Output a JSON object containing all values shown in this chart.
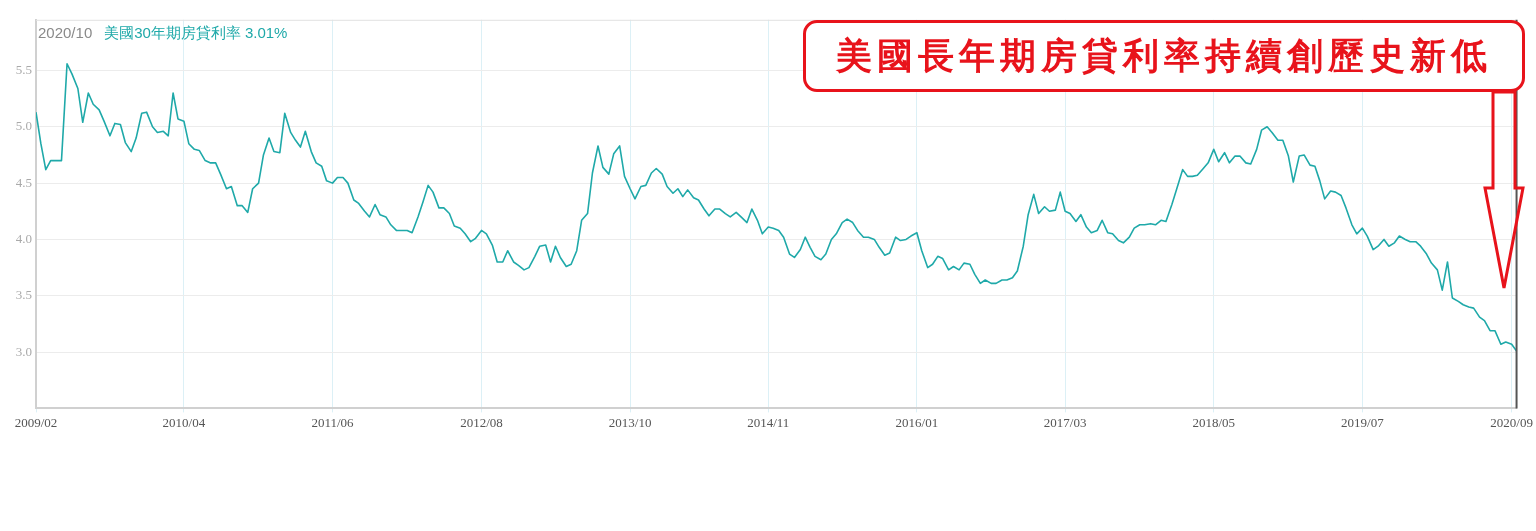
{
  "chart_data": {
    "type": "line",
    "title": "2020/10",
    "annotations": [
      "3.01%",
      "美國長年期房貸利率持續創歷史新低"
    ],
    "x": [
      "2009-02-01",
      "2009-02-15",
      "2009-03-01",
      "2009-03-15",
      "2009-04-01",
      "2009-04-15",
      "2009-05-01",
      "2009-05-15",
      "2009-06-01",
      "2009-06-15",
      "2009-07-01",
      "2009-07-15",
      "2009-08-01",
      "2009-08-15",
      "2009-09-01",
      "2009-09-15",
      "2009-10-01",
      "2009-10-15",
      "2009-11-01",
      "2009-11-15",
      "2009-12-01",
      "2009-12-15",
      "2010-01-01",
      "2010-01-15",
      "2010-02-01",
      "2010-02-15",
      "2010-03-01",
      "2010-03-15",
      "2010-04-01",
      "2010-04-15",
      "2010-05-01",
      "2010-05-15",
      "2010-06-01",
      "2010-06-15",
      "2010-07-01",
      "2010-07-15",
      "2010-08-01",
      "2010-08-15",
      "2010-09-01",
      "2010-09-15",
      "2010-10-01",
      "2010-10-15",
      "2010-11-01",
      "2010-11-15",
      "2010-12-01",
      "2010-12-15",
      "2011-01-01",
      "2011-01-15",
      "2011-02-01",
      "2011-02-15",
      "2011-03-01",
      "2011-03-15",
      "2011-04-01",
      "2011-04-15",
      "2011-05-01",
      "2011-05-15",
      "2011-06-01",
      "2011-06-15",
      "2011-07-01",
      "2011-07-15",
      "2011-08-01",
      "2011-08-15",
      "2011-09-01",
      "2011-09-15",
      "2011-10-01",
      "2011-10-15",
      "2011-11-01",
      "2011-11-15",
      "2011-12-01",
      "2011-12-15",
      "2012-01-01",
      "2012-01-15",
      "2012-02-01",
      "2012-02-15",
      "2012-03-01",
      "2012-03-15",
      "2012-04-01",
      "2012-04-15",
      "2012-05-01",
      "2012-05-15",
      "2012-06-01",
      "2012-06-15",
      "2012-07-01",
      "2012-07-15",
      "2012-08-01",
      "2012-08-15",
      "2012-09-01",
      "2012-09-15",
      "2012-10-01",
      "2012-10-15",
      "2012-11-01",
      "2012-11-15",
      "2012-12-01",
      "2012-12-15",
      "2013-01-01",
      "2013-01-15",
      "2013-02-01",
      "2013-02-15",
      "2013-03-01",
      "2013-03-15",
      "2013-04-01",
      "2013-04-15",
      "2013-05-01",
      "2013-05-15",
      "2013-06-01",
      "2013-06-15",
      "2013-07-01",
      "2013-07-15",
      "2013-08-01",
      "2013-08-15",
      "2013-09-01",
      "2013-09-15",
      "2013-10-01",
      "2013-10-15",
      "2013-11-01",
      "2013-11-15",
      "2013-12-01",
      "2013-12-15",
      "2014-01-01",
      "2014-01-15",
      "2014-02-01",
      "2014-02-15",
      "2014-03-01",
      "2014-03-15",
      "2014-04-01",
      "2014-04-15",
      "2014-05-01",
      "2014-05-15",
      "2014-06-01",
      "2014-06-15",
      "2014-07-01",
      "2014-07-15",
      "2014-08-01",
      "2014-08-15",
      "2014-09-01",
      "2014-09-15",
      "2014-10-01",
      "2014-10-15",
      "2014-11-01",
      "2014-11-15",
      "2014-12-01",
      "2014-12-15",
      "2015-01-01",
      "2015-01-15",
      "2015-02-01",
      "2015-02-15",
      "2015-03-01",
      "2015-03-15",
      "2015-04-01",
      "2015-04-15",
      "2015-05-01",
      "2015-05-15",
      "2015-06-01",
      "2015-06-15",
      "2015-07-01",
      "2015-07-15",
      "2015-08-01",
      "2015-08-15",
      "2015-09-01",
      "2015-09-15",
      "2015-10-01",
      "2015-10-15",
      "2015-11-01",
      "2015-11-15",
      "2015-12-01",
      "2015-12-15",
      "2016-01-01",
      "2016-01-15",
      "2016-02-01",
      "2016-02-15",
      "2016-03-01",
      "2016-03-15",
      "2016-04-01",
      "2016-04-15",
      "2016-05-01",
      "2016-05-15",
      "2016-06-01",
      "2016-06-15",
      "2016-07-01",
      "2016-07-15",
      "2016-08-01",
      "2016-08-15",
      "2016-09-01",
      "2016-09-15",
      "2016-10-01",
      "2016-10-15",
      "2016-11-01",
      "2016-11-15",
      "2016-12-01",
      "2016-12-15",
      "2017-01-01",
      "2017-01-15",
      "2017-02-01",
      "2017-02-15",
      "2017-03-01",
      "2017-03-15",
      "2017-04-01",
      "2017-04-15",
      "2017-05-01",
      "2017-05-15",
      "2017-06-01",
      "2017-06-15",
      "2017-07-01",
      "2017-07-15",
      "2017-08-01",
      "2017-08-15",
      "2017-09-01",
      "2017-09-15",
      "2017-10-01",
      "2017-10-15",
      "2017-11-01",
      "2017-11-15",
      "2017-12-01",
      "2017-12-15",
      "2018-01-01",
      "2018-01-15",
      "2018-02-01",
      "2018-02-15",
      "2018-03-01",
      "2018-03-15",
      "2018-04-01",
      "2018-04-15",
      "2018-05-01",
      "2018-05-15",
      "2018-06-01",
      "2018-06-15",
      "2018-07-01",
      "2018-07-15",
      "2018-08-01",
      "2018-08-15",
      "2018-09-01",
      "2018-09-15",
      "2018-10-01",
      "2018-10-15",
      "2018-11-01",
      "2018-11-15",
      "2018-12-01",
      "2018-12-15",
      "2019-01-01",
      "2019-01-15",
      "2019-02-01",
      "2019-02-15",
      "2019-03-01",
      "2019-03-15",
      "2019-04-01",
      "2019-04-15",
      "2019-05-01",
      "2019-05-15",
      "2019-06-01",
      "2019-06-15",
      "2019-07-01",
      "2019-07-15",
      "2019-08-01",
      "2019-08-15",
      "2019-09-01",
      "2019-09-15",
      "2019-10-01",
      "2019-10-15",
      "2019-11-01",
      "2019-11-15",
      "2019-12-01",
      "2019-12-15",
      "2020-01-01",
      "2020-01-15",
      "2020-02-01",
      "2020-02-15",
      "2020-03-01",
      "2020-03-15",
      "2020-04-01",
      "2020-04-15",
      "2020-05-01",
      "2020-05-15",
      "2020-06-01",
      "2020-06-15",
      "2020-07-01",
      "2020-07-15",
      "2020-08-01",
      "2020-08-15",
      "2020-09-01",
      "2020-09-15"
    ],
    "series": [
      {
        "name": "美國30年期房貸利率",
        "color": "#1fa9a9",
        "values": [
          5.13,
          4.85,
          4.62,
          4.7,
          4.7,
          4.7,
          5.56,
          5.47,
          5.34,
          5.04,
          5.3,
          5.2,
          5.15,
          5.05,
          4.92,
          5.03,
          5.02,
          4.86,
          4.78,
          4.9,
          5.12,
          5.13,
          5.0,
          4.95,
          4.96,
          4.92,
          5.3,
          5.07,
          5.05,
          4.85,
          4.8,
          4.79,
          4.7,
          4.68,
          4.68,
          4.58,
          4.45,
          4.47,
          4.3,
          4.3,
          4.24,
          4.45,
          4.5,
          4.75,
          4.9,
          4.78,
          4.77,
          5.12,
          4.95,
          4.88,
          4.82,
          4.96,
          4.78,
          4.68,
          4.65,
          4.52,
          4.5,
          4.55,
          4.55,
          4.5,
          4.35,
          4.32,
          4.25,
          4.2,
          4.31,
          4.22,
          4.2,
          4.13,
          4.08,
          4.08,
          4.08,
          4.06,
          4.2,
          4.33,
          4.48,
          4.42,
          4.28,
          4.28,
          4.23,
          4.12,
          4.1,
          4.05,
          3.98,
          4.01,
          4.08,
          4.05,
          3.95,
          3.8,
          3.8,
          3.9,
          3.8,
          3.77,
          3.73,
          3.75,
          3.85,
          3.94,
          3.95,
          3.8,
          3.94,
          3.84,
          3.76,
          3.78,
          3.9,
          4.17,
          4.23,
          4.59,
          4.83,
          4.64,
          4.58,
          4.76,
          4.83,
          4.56,
          4.45,
          4.36,
          4.47,
          4.48,
          4.59,
          4.63,
          4.58,
          4.47,
          4.41,
          4.45,
          4.38,
          4.44,
          4.37,
          4.35,
          4.27,
          4.21,
          4.27,
          4.27,
          4.23,
          4.2,
          4.24,
          4.2,
          4.15,
          4.27,
          4.17,
          4.05,
          4.11,
          4.1,
          4.08,
          4.02,
          3.87,
          3.84,
          3.91,
          4.02,
          3.93,
          3.85,
          3.82,
          3.87,
          4.0,
          4.05,
          4.15,
          4.18,
          4.15,
          4.08,
          4.02,
          4.02,
          4.0,
          3.93,
          3.86,
          3.88,
          4.02,
          3.99,
          4.0,
          4.03,
          4.06,
          3.9,
          3.75,
          3.78,
          3.85,
          3.83,
          3.73,
          3.76,
          3.73,
          3.79,
          3.78,
          3.69,
          3.61,
          3.64,
          3.61,
          3.61,
          3.64,
          3.64,
          3.66,
          3.72,
          3.94,
          4.22,
          4.4,
          4.23,
          4.29,
          4.25,
          4.26,
          4.42,
          4.25,
          4.23,
          4.16,
          4.22,
          4.11,
          4.06,
          4.08,
          4.17,
          4.06,
          4.05,
          3.99,
          3.97,
          4.02,
          4.1,
          4.13,
          4.13,
          4.14,
          4.13,
          4.17,
          4.16,
          4.31,
          4.45,
          4.62,
          4.56,
          4.56,
          4.57,
          4.63,
          4.68,
          4.8,
          4.69,
          4.77,
          4.68,
          4.74,
          4.74,
          4.68,
          4.67,
          4.8,
          4.97,
          5.0,
          4.95,
          4.88,
          4.88,
          4.74,
          4.51,
          4.74,
          4.75,
          4.66,
          4.65,
          4.52,
          4.36,
          4.43,
          4.42,
          4.39,
          4.28,
          4.13,
          4.05,
          4.1,
          4.03,
          3.91,
          3.94,
          4.0,
          3.94,
          3.97,
          4.03,
          4.0,
          3.98,
          3.98,
          3.94,
          3.87,
          3.79,
          3.73,
          3.55,
          3.8,
          3.48,
          3.45,
          3.42,
          3.4,
          3.39,
          3.31,
          3.28,
          3.19,
          3.19,
          3.07,
          3.09,
          3.07,
          3.01
        ]
      }
    ],
    "xlim": [
      "2009-02-01",
      "2020-09-15"
    ],
    "xticks": [
      {
        "value": "2009-02",
        "label": "2009/02"
      },
      {
        "value": "2010-04",
        "label": "2010/04"
      },
      {
        "value": "2011-06",
        "label": "2011/06"
      },
      {
        "value": "2012-08",
        "label": "2012/08"
      },
      {
        "value": "2013-10",
        "label": "2013/10"
      },
      {
        "value": "2014-11",
        "label": "2014/11"
      },
      {
        "value": "2016-01",
        "label": "2016/01"
      },
      {
        "value": "2017-03",
        "label": "2017/03"
      },
      {
        "value": "2018-05",
        "label": "2018/05"
      },
      {
        "value": "2019-07",
        "label": "2019/07"
      },
      {
        "value": "2020-09",
        "label": "2020/09"
      }
    ],
    "ylim": [
      2.5,
      5.95
    ],
    "yticks": [
      {
        "value": 3,
        "label": "3.0"
      },
      3.5,
      {
        "value": 4,
        "label": "4.0"
      },
      4.5,
      {
        "value": 5,
        "label": "5.0"
      },
      5.5
    ],
    "grid": true,
    "marker": "none"
  }
}
